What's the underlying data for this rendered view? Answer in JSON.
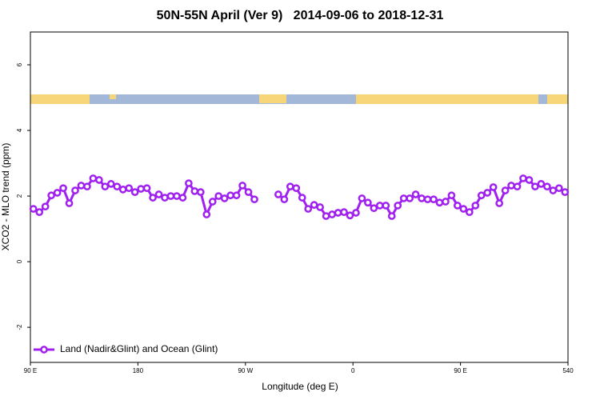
{
  "chart_data": {
    "type": "line",
    "title": "50N-55N April (Ver 9)   2014-09-06 to 2018-12-31",
    "xlabel": "Longitude (deg E)",
    "ylabel": "XCO2 - MLO trend (ppm)",
    "x": [
      92.5,
      97.5,
      102.5,
      107.5,
      112.5,
      117.5,
      122.5,
      127.5,
      132.5,
      137.5,
      142.5,
      147.5,
      152.5,
      157.5,
      162.5,
      167.5,
      172.5,
      177.5,
      182.5,
      187.5,
      192.5,
      197.5,
      202.5,
      207.5,
      212.5,
      217.5,
      222.5,
      227.5,
      232.5,
      237.5,
      242.5,
      247.5,
      252.5,
      257.5,
      262.5,
      267.5,
      272.5,
      277.5,
      282.5,
      287.5,
      292.5,
      297.5,
      302.5,
      307.5,
      312.5,
      317.5,
      322.5,
      327.5,
      332.5,
      337.5,
      342.5,
      347.5,
      352.5,
      357.5,
      362.5,
      367.5,
      372.5,
      377.5,
      382.5,
      387.5,
      392.5,
      397.5,
      402.5,
      407.5,
      412.5,
      417.5,
      422.5,
      427.5,
      432.5,
      437.5,
      442.5,
      447.5,
      452.5,
      457.5,
      462.5,
      467.5,
      472.5,
      477.5,
      482.5,
      487.5,
      492.5,
      497.5,
      502.5,
      507.5,
      512.5,
      517.5,
      522.5,
      527.5,
      532.5,
      537.5
    ],
    "series": [
      {
        "name": "Land (Nadir&Glint) and Ocean (Glint)",
        "color": "#a020f0",
        "values": [
          1.61,
          1.51,
          1.68,
          2.02,
          2.1,
          2.24,
          1.78,
          2.17,
          2.32,
          2.29,
          2.54,
          2.49,
          2.29,
          2.37,
          2.29,
          2.2,
          2.24,
          2.12,
          2.22,
          2.24,
          1.95,
          2.05,
          1.95,
          2.0,
          2.0,
          1.95,
          2.39,
          2.15,
          2.12,
          1.44,
          1.83,
          2.0,
          1.93,
          2.02,
          2.02,
          2.32,
          2.12,
          1.9,
          null,
          null,
          null,
          2.05,
          1.9,
          2.29,
          2.24,
          1.95,
          1.61,
          1.73,
          1.66,
          1.39,
          1.44,
          1.49,
          1.51,
          1.41,
          1.49,
          1.93,
          1.8,
          1.63,
          1.71,
          1.71,
          1.39,
          1.71,
          1.93,
          1.93,
          2.05,
          1.93,
          1.9,
          1.9,
          1.8,
          1.83,
          2.02,
          1.71,
          1.61,
          1.51,
          1.71,
          2.02,
          2.1,
          2.27,
          1.78,
          2.17,
          2.32,
          2.29,
          2.54,
          2.49,
          2.29,
          2.37,
          2.29,
          2.17,
          2.24,
          2.12
        ]
      }
    ],
    "xlim": [
      90,
      540
    ],
    "xticks": [
      {
        "value": 90,
        "label": "90 E"
      },
      180,
      {
        "value": 270,
        "label": "90 W"
      },
      {
        "value": 360,
        "label": "0"
      },
      {
        "value": 450,
        "label": "90 E"
      },
      540
    ],
    "ylim": [
      -3.07,
      7.0
    ],
    "yticks": [
      -2,
      0,
      2,
      4,
      6
    ],
    "legend": "bottomleft"
  }
}
